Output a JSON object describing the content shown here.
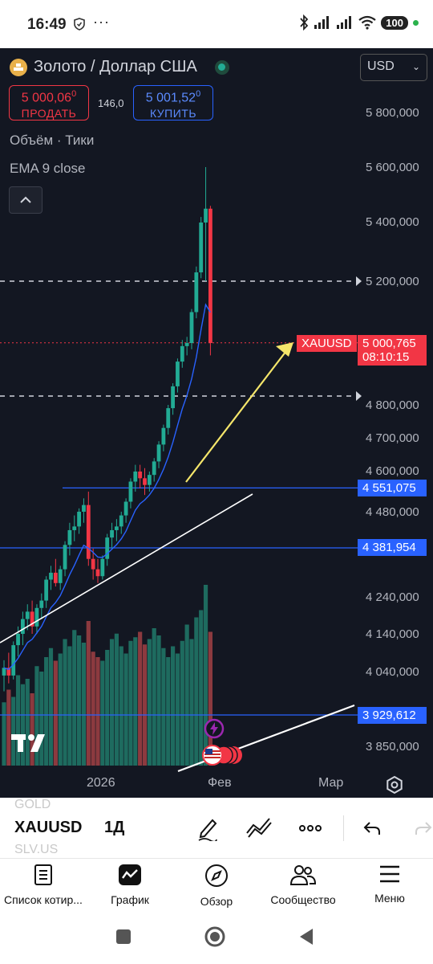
{
  "status_bar": {
    "time": "16:49",
    "battery": "100"
  },
  "header": {
    "title": "Золото / Доллар США",
    "currency": "USD"
  },
  "trade": {
    "sell_price": "5 000,06",
    "sell_sup": "0",
    "sell_label": "ПРОДАТЬ",
    "spread": "146,0",
    "buy_price": "5 001,52",
    "buy_sup": "0",
    "buy_label": "КУПИТЬ"
  },
  "indicators": {
    "volume": "Объём · Тики",
    "ema": "EMA 9 close"
  },
  "price_axis": {
    "labels": [
      "5 800,000",
      "5 600,000",
      "5 400,000",
      "5 200,000",
      "4 800,000",
      "4 700,000",
      "4 600,000",
      "4 480,000",
      "4 240,000",
      "4 140,000",
      "4 040,000",
      "3 850,000"
    ],
    "current_symbol": "XAUUSD",
    "current_price": "5 000,765",
    "countdown": "08:10:15",
    "level_1": "4 551,075",
    "level_2": "4 381,954",
    "level_3": "3 929,612"
  },
  "time_axis": {
    "labels": [
      "2026",
      "Фев",
      "Мар"
    ]
  },
  "toolbar": {
    "ghost_above": "GOLD",
    "symbol": "XAUUSD",
    "timeframe": "1Д",
    "ghost_below": "SLV.US"
  },
  "bottom_nav": {
    "items": [
      {
        "label": "Список котир...",
        "icon": "watchlist-icon"
      },
      {
        "label": "График",
        "icon": "chart-icon"
      },
      {
        "label": "Обзор",
        "icon": "compass-icon"
      },
      {
        "label": "Сообщество",
        "icon": "community-icon"
      },
      {
        "label": "Меню",
        "icon": "menu-icon"
      }
    ]
  },
  "colors": {
    "background": "#131722",
    "up": "#22ab94",
    "down": "#f23645",
    "ema": "#2962ff",
    "level_line": "#2962ff",
    "trendline": "#ffffff",
    "arrow": "#f5e66b"
  },
  "chart_data": {
    "type": "candlestick",
    "symbol": "XAUUSD",
    "timeframe": "1D",
    "price_levels": [
      4551.075,
      4381.954,
      3929.612
    ],
    "current_price": 5000.765,
    "candles": [
      {
        "o": 4030,
        "h": 4070,
        "l": 3990,
        "c": 4050
      },
      {
        "o": 4050,
        "h": 4090,
        "l": 4010,
        "c": 4030
      },
      {
        "o": 4030,
        "h": 4120,
        "l": 4020,
        "c": 4110
      },
      {
        "o": 4110,
        "h": 4160,
        "l": 4080,
        "c": 4140
      },
      {
        "o": 4140,
        "h": 4200,
        "l": 4110,
        "c": 4180
      },
      {
        "o": 4180,
        "h": 4220,
        "l": 4150,
        "c": 4200
      },
      {
        "o": 4200,
        "h": 4230,
        "l": 4140,
        "c": 4160
      },
      {
        "o": 4160,
        "h": 4220,
        "l": 4140,
        "c": 4210
      },
      {
        "o": 4210,
        "h": 4250,
        "l": 4180,
        "c": 4230
      },
      {
        "o": 4230,
        "h": 4300,
        "l": 4210,
        "c": 4290
      },
      {
        "o": 4290,
        "h": 4330,
        "l": 4260,
        "c": 4310
      },
      {
        "o": 4310,
        "h": 4350,
        "l": 4270,
        "c": 4280
      },
      {
        "o": 4280,
        "h": 4330,
        "l": 4260,
        "c": 4320
      },
      {
        "o": 4320,
        "h": 4400,
        "l": 4300,
        "c": 4390
      },
      {
        "o": 4390,
        "h": 4450,
        "l": 4360,
        "c": 4430
      },
      {
        "o": 4430,
        "h": 4470,
        "l": 4400,
        "c": 4440
      },
      {
        "o": 4440,
        "h": 4490,
        "l": 4420,
        "c": 4480
      },
      {
        "o": 4480,
        "h": 4520,
        "l": 4450,
        "c": 4500
      },
      {
        "o": 4500,
        "h": 4540,
        "l": 4330,
        "c": 4350
      },
      {
        "o": 4350,
        "h": 4380,
        "l": 4290,
        "c": 4320
      },
      {
        "o": 4320,
        "h": 4350,
        "l": 4280,
        "c": 4300
      },
      {
        "o": 4300,
        "h": 4360,
        "l": 4290,
        "c": 4350
      },
      {
        "o": 4350,
        "h": 4420,
        "l": 4330,
        "c": 4410
      },
      {
        "o": 4410,
        "h": 4450,
        "l": 4380,
        "c": 4430
      },
      {
        "o": 4430,
        "h": 4460,
        "l": 4400,
        "c": 4440
      },
      {
        "o": 4440,
        "h": 4480,
        "l": 4420,
        "c": 4470
      },
      {
        "o": 4470,
        "h": 4520,
        "l": 4450,
        "c": 4510
      },
      {
        "o": 4510,
        "h": 4580,
        "l": 4490,
        "c": 4570
      },
      {
        "o": 4570,
        "h": 4620,
        "l": 4540,
        "c": 4600
      },
      {
        "o": 4600,
        "h": 4620,
        "l": 4550,
        "c": 4580
      },
      {
        "o": 4580,
        "h": 4610,
        "l": 4530,
        "c": 4560
      },
      {
        "o": 4560,
        "h": 4600,
        "l": 4540,
        "c": 4590
      },
      {
        "o": 4590,
        "h": 4640,
        "l": 4570,
        "c": 4630
      },
      {
        "o": 4630,
        "h": 4690,
        "l": 4610,
        "c": 4680
      },
      {
        "o": 4680,
        "h": 4740,
        "l": 4660,
        "c": 4730
      },
      {
        "o": 4730,
        "h": 4800,
        "l": 4710,
        "c": 4790
      },
      {
        "o": 4790,
        "h": 4870,
        "l": 4770,
        "c": 4860
      },
      {
        "o": 4860,
        "h": 4950,
        "l": 4840,
        "c": 4940
      },
      {
        "o": 4940,
        "h": 5010,
        "l": 4920,
        "c": 4990
      },
      {
        "o": 4990,
        "h": 5020,
        "l": 4960,
        "c": 5000
      },
      {
        "o": 5000,
        "h": 5110,
        "l": 4980,
        "c": 5100
      },
      {
        "o": 5100,
        "h": 5250,
        "l": 5080,
        "c": 5230
      },
      {
        "o": 5230,
        "h": 5420,
        "l": 5210,
        "c": 5400
      },
      {
        "o": 5400,
        "h": 5600,
        "l": 5200,
        "c": 5450
      },
      {
        "o": 5450,
        "h": 5460,
        "l": 4960,
        "c": 5000
      }
    ],
    "volumes": [
      0.35,
      0.42,
      0.38,
      0.5,
      0.45,
      0.48,
      0.4,
      0.55,
      0.52,
      0.6,
      0.65,
      0.58,
      0.62,
      0.7,
      0.66,
      0.75,
      0.72,
      0.68,
      0.8,
      0.63,
      0.6,
      0.58,
      0.64,
      0.7,
      0.73,
      0.66,
      0.62,
      0.69,
      0.71,
      0.74,
      0.67,
      0.7,
      0.76,
      0.72,
      0.65,
      0.6,
      0.66,
      0.62,
      0.69,
      0.78,
      0.7,
      0.82,
      0.86,
      1.0,
      0.74
    ],
    "ema_label": "EMA 9 close"
  }
}
